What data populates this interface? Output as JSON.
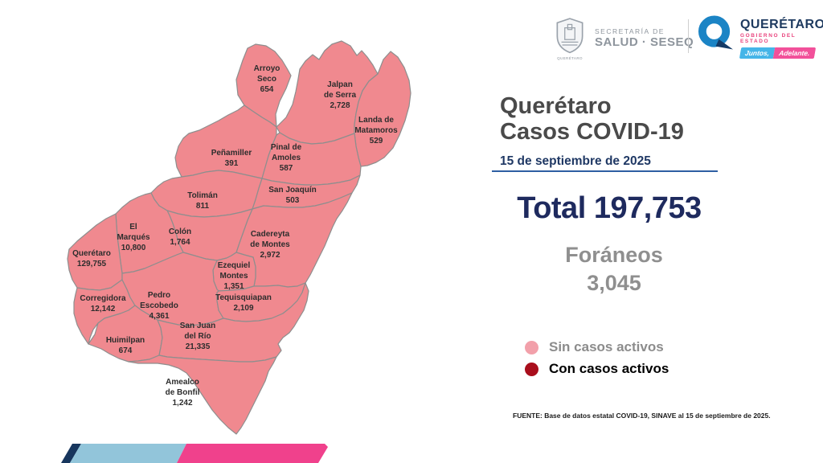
{
  "header": {
    "seseq": {
      "line1": "SECRETARÍA DE",
      "line2": "SALUD · SESEQ",
      "crest_sub": "QUERÉTARO"
    },
    "qro_logo": {
      "name": "QUERÉTARO",
      "sub": "GOBIERNO DEL ESTADO",
      "badge1": "Juntos,",
      "badge2": "Adelante.",
      "ring_color": "#1b84c5",
      "tail_color": "#143a66",
      "badge1_color": "#45b5e8",
      "badge2_color": "#f2509a"
    }
  },
  "panel": {
    "title_line1": "Querétaro",
    "title_line2": "Casos COVID-19",
    "date": "15 de septiembre de 2025",
    "total_label": "Total",
    "total_value": "197,753",
    "foraneos_label": "Foráneos",
    "foraneos_value": "3,045",
    "legend": [
      {
        "label": "Sin casos activos",
        "color": "#f2a0aa"
      },
      {
        "label": "Con casos activos",
        "color": "#a90e1c"
      }
    ],
    "source": "FUENTE: Base de datos estatal  COVID-19,  SINAVE  al 15 de septiembre de 2025."
  },
  "map": {
    "fill_no_active": "#f0898f",
    "border_color": "#8e8e8e",
    "municipalities": [
      {
        "id": "arroyo-seco",
        "name": "Arroyo Seco",
        "name_lines": [
          "Arroyo",
          "Seco"
        ],
        "cases": "654"
      },
      {
        "id": "jalpan",
        "name": "Jalpan de Serra",
        "name_lines": [
          "Jalpan",
          "de Serra"
        ],
        "cases": "2,728"
      },
      {
        "id": "landa",
        "name": "Landa de Matamoros",
        "name_lines": [
          "Landa de",
          "Matamoros"
        ],
        "cases": "529"
      },
      {
        "id": "penamiller",
        "name": "Peñamiller",
        "name_lines": [
          "Peñamiller"
        ],
        "cases": "391"
      },
      {
        "id": "pinal",
        "name": "Pinal de Amoles",
        "name_lines": [
          "Pinal de",
          "Amoles"
        ],
        "cases": "587"
      },
      {
        "id": "san-joaquin",
        "name": "San Joaquín",
        "name_lines": [
          "San Joaquín"
        ],
        "cases": "503"
      },
      {
        "id": "toliman",
        "name": "Tolimán",
        "name_lines": [
          "Tolimán"
        ],
        "cases": "811"
      },
      {
        "id": "colon",
        "name": "Colón",
        "name_lines": [
          "Colón"
        ],
        "cases": "1,764"
      },
      {
        "id": "cadereyta",
        "name": "Cadereyta de Montes",
        "name_lines": [
          "Cadereyta",
          "de Montes"
        ],
        "cases": "2,972"
      },
      {
        "id": "el-marques",
        "name": "El Marqués",
        "name_lines": [
          "El",
          "Marqués"
        ],
        "cases": "10,800"
      },
      {
        "id": "queretaro",
        "name": "Querétaro",
        "name_lines": [
          "Querétaro"
        ],
        "cases": "129,755"
      },
      {
        "id": "ezequiel-montes",
        "name": "Ezequiel Montes",
        "name_lines": [
          "Ezequiel",
          "Montes"
        ],
        "cases": "1,351"
      },
      {
        "id": "corregidora",
        "name": "Corregidora",
        "name_lines": [
          "Corregidora"
        ],
        "cases": "12,142"
      },
      {
        "id": "pedro-escobedo",
        "name": "Pedro Escobedo",
        "name_lines": [
          "Pedro",
          "Escobedo"
        ],
        "cases": "4,361"
      },
      {
        "id": "tequisquiapan",
        "name": "Tequisquiapan",
        "name_lines": [
          "Tequisquiapan"
        ],
        "cases": "2,109"
      },
      {
        "id": "huimilpan",
        "name": "Huimilpan",
        "name_lines": [
          "Huimilpan"
        ],
        "cases": "674"
      },
      {
        "id": "san-juan-del-rio",
        "name": "San Juan del Río",
        "name_lines": [
          "San Juan",
          "del Río"
        ],
        "cases": "21,335"
      },
      {
        "id": "amealco",
        "name": "Amealco de Bonfil",
        "name_lines": [
          "Amealco",
          "de Bonfil"
        ],
        "cases": "1,242"
      }
    ]
  },
  "ribbon": {
    "navy": "#17365d",
    "blue": "#92c5da",
    "pink": "#f0418c"
  }
}
